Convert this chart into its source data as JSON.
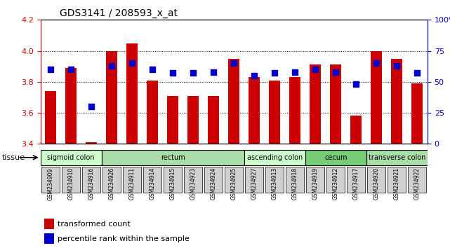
{
  "title": "GDS3141 / 208593_x_at",
  "samples": [
    "GSM234909",
    "GSM234910",
    "GSM234916",
    "GSM234926",
    "GSM234911",
    "GSM234914",
    "GSM234915",
    "GSM234923",
    "GSM234924",
    "GSM234925",
    "GSM234927",
    "GSM234913",
    "GSM234918",
    "GSM234919",
    "GSM234912",
    "GSM234917",
    "GSM234920",
    "GSM234921",
    "GSM234922"
  ],
  "transformed_count": [
    3.74,
    3.89,
    3.41,
    4.0,
    4.05,
    3.81,
    3.71,
    3.71,
    3.71,
    3.95,
    3.83,
    3.81,
    3.83,
    3.91,
    3.91,
    3.58,
    4.0,
    3.95,
    3.79
  ],
  "percentile_rank": [
    60,
    60,
    30,
    63,
    65,
    60,
    57,
    57,
    58,
    65,
    55,
    57,
    58,
    60,
    58,
    48,
    65,
    63,
    57
  ],
  "ylim_left": [
    3.4,
    4.2
  ],
  "ylim_right": [
    0,
    100
  ],
  "yticks_left": [
    3.4,
    3.6,
    3.8,
    4.0,
    4.2
  ],
  "yticks_right": [
    0,
    25,
    50,
    75,
    100
  ],
  "bar_color": "#cc0000",
  "dot_color": "#0000cc",
  "tissue_groups": [
    {
      "label": "sigmoid colon",
      "start": 0,
      "end": 3,
      "color": "#ccffcc"
    },
    {
      "label": "rectum",
      "start": 3,
      "end": 10,
      "color": "#aaddaa"
    },
    {
      "label": "ascending colon",
      "start": 10,
      "end": 13,
      "color": "#ccffcc"
    },
    {
      "label": "cecum",
      "start": 13,
      "end": 16,
      "color": "#77cc77"
    },
    {
      "label": "transverse colon",
      "start": 16,
      "end": 19,
      "color": "#aaddaa"
    }
  ],
  "tissue_label": "tissue",
  "legend_bar_label": "transformed count",
  "legend_dot_label": "percentile rank within the sample",
  "grid_color": "#000000",
  "background_color": "#ffffff",
  "tick_label_color_left": "#cc0000",
  "tick_label_color_right": "#0000cc"
}
